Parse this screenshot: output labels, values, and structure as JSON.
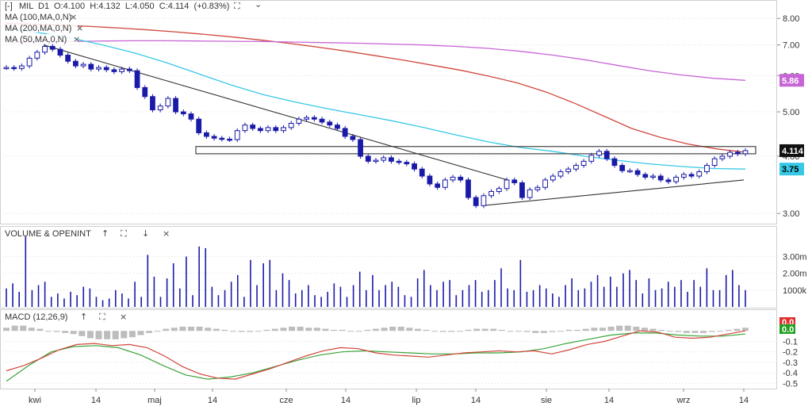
{
  "header": {
    "collapse": "[-]",
    "symbol": "MIL",
    "interval": "D1",
    "ohlc": "O:4.100  H:4.132  L:4.050  C:4.114  (+0.83%)"
  },
  "indicators": [
    {
      "label": "MA (100,MA,0,N)",
      "color": "#d0473b"
    },
    {
      "label": "MA (200,MA,0,N)",
      "color": "#c865d6"
    },
    {
      "label": "MA (50,MA,0,N)",
      "color": "#37c8e6"
    }
  ],
  "panels": {
    "volume_label": "VOLUME & OPENINT",
    "macd_label": "MACD (12,26,9)"
  },
  "icons": {
    "expand": "⛶",
    "down": "⌄",
    "close": "×",
    "up": "↑",
    "down_arrow": "↓"
  },
  "colors": {
    "candle": "#1a1aa8",
    "price_line": "#555555",
    "ma100": "#d0473b",
    "ma200": "#c865d6",
    "ma50": "#37c8e6",
    "macd": "#d0473b",
    "signal": "#3aa33a",
    "hist": "#bdbdbd",
    "volume": "#1a1aa8"
  },
  "chart_data": {
    "type": "candlestick",
    "x_labels": [
      "kwi",
      "14",
      "maj",
      "14",
      "cze",
      "14",
      "lip",
      "14",
      "sie",
      "14",
      "wrz",
      "14"
    ],
    "price_axis": {
      "ticks": [
        "8.00",
        "7.00",
        "6.00",
        "5.00",
        "4.00",
        "3.00"
      ],
      "scale": "log"
    },
    "price_badges": [
      {
        "value": "5.86",
        "bg": "#c865d6",
        "fg": "#ffffff"
      },
      {
        "value": "4.114",
        "bg": "#111111",
        "fg": "#ffffff"
      },
      {
        "value": "3.75",
        "bg": "#37c8e6",
        "fg": "#000000"
      }
    ],
    "volume_axis": {
      "ticks": [
        "3.00m",
        "2.00m",
        "1000k"
      ]
    },
    "macd_axis": {
      "ticks": [
        "-0.1",
        "-0.2",
        "-0.3",
        "-0.4",
        "-0.5"
      ]
    },
    "macd_badges": [
      {
        "value": "0.0",
        "bg": "#e03030",
        "fg": "#ffffff"
      },
      {
        "value": "0.0",
        "bg": "#1fa01f",
        "fg": "#ffffff"
      }
    ],
    "closes": [
      6.25,
      6.22,
      6.3,
      6.55,
      6.75,
      6.95,
      6.85,
      6.65,
      6.45,
      6.3,
      6.35,
      6.2,
      6.25,
      6.18,
      6.12,
      6.2,
      6.15,
      5.65,
      5.4,
      5.05,
      5.15,
      5.35,
      5.0,
      4.95,
      4.82,
      4.5,
      4.42,
      4.38,
      4.36,
      4.35,
      4.55,
      4.68,
      4.6,
      4.55,
      4.62,
      4.55,
      4.62,
      4.72,
      4.82,
      4.86,
      4.82,
      4.75,
      4.68,
      4.6,
      4.42,
      4.35,
      4.0,
      3.9,
      3.92,
      3.97,
      3.9,
      3.88,
      3.85,
      3.75,
      3.62,
      3.48,
      3.42,
      3.55,
      3.6,
      3.55,
      3.25,
      3.12,
      3.28,
      3.35,
      3.4,
      3.55,
      3.5,
      3.25,
      3.38,
      3.42,
      3.55,
      3.62,
      3.7,
      3.75,
      3.82,
      3.9,
      4.02,
      4.1,
      3.95,
      3.82,
      3.72,
      3.72,
      3.65,
      3.6,
      3.62,
      3.55,
      3.52,
      3.6,
      3.65,
      3.62,
      3.7,
      3.82,
      3.95,
      4.0,
      4.08,
      4.05,
      4.114
    ],
    "series": [
      {
        "name": "MA (100,MA,0,N)",
        "values": [
          7.8,
          7.77,
          7.73,
          7.68,
          7.62,
          7.55,
          7.47,
          7.38,
          7.28,
          7.17,
          7.05,
          6.92,
          6.78,
          6.63,
          6.48,
          6.32,
          6.16,
          5.98,
          5.78,
          5.52,
          5.22,
          4.9,
          4.6,
          4.4,
          4.25,
          4.15,
          4.08
        ]
      },
      {
        "name": "MA (200,MA,0,N)",
        "values": [
          7.08,
          7.1,
          7.12,
          7.14,
          7.15,
          7.15,
          7.14,
          7.13,
          7.12,
          7.1,
          7.08,
          7.06,
          7.03,
          7.0,
          6.95,
          6.88,
          6.78,
          6.65,
          6.5,
          6.32,
          6.15,
          6.02,
          5.92,
          5.86
        ]
      },
      {
        "name": "MA (50,MA,0,N)",
        "values": [
          7.6,
          7.45,
          7.25,
          7.0,
          6.72,
          6.4,
          6.05,
          5.72,
          5.45,
          5.25,
          5.08,
          4.93,
          4.78,
          4.62,
          4.45,
          4.3,
          4.18,
          4.1,
          4.0,
          3.92,
          3.85,
          3.8,
          3.76,
          3.75
        ]
      }
    ],
    "volume": [
      1.1,
      1.4,
      0.9,
      4.2,
      1.0,
      1.3,
      1.5,
      0.6,
      0.8,
      0.5,
      0.9,
      0.7,
      1.2,
      1.1,
      0.6,
      0.4,
      0.5,
      1.0,
      0.8,
      0.5,
      1.5,
      0.6,
      3.1,
      1.8,
      0.6,
      1.7,
      2.6,
      1.1,
      3.0,
      0.7,
      3.6,
      3.5,
      1.2,
      0.7,
      1.0,
      1.5,
      1.9,
      0.6,
      2.8,
      1.3,
      2.6,
      2.8,
      1.0,
      2.0,
      1.6,
      0.8,
      1.0,
      1.3,
      0.7,
      0.6,
      0.9,
      1.4,
      1.2,
      0.6,
      1.3,
      2.1,
      1.0,
      1.9,
      1.0,
      1.3,
      1.5,
      1.2,
      0.7,
      0.6,
      1.7,
      2.2,
      1.3,
      1.0,
      1.5,
      1.6,
      0.7,
      1.0,
      1.3,
      1.6,
      0.9,
      1.0,
      1.6,
      2.3,
      1.1,
      1.0,
      2.8,
      0.9,
      1.0,
      1.3,
      1.1,
      0.8,
      0.6,
      1.3,
      1.7,
      1.0,
      1.1,
      1.5,
      1.9,
      1.2,
      1.8,
      1.2,
      2.0,
      2.2,
      1.6,
      0.8,
      1.7,
      1.0,
      1.1,
      1.5,
      1.2,
      1.6,
      0.9,
      1.6,
      1.2,
      2.3,
      1.0,
      1.0,
      1.9,
      2.2,
      1.3,
      1.0
    ],
    "macd": [
      -0.38,
      -0.33,
      -0.26,
      -0.18,
      -0.13,
      -0.12,
      -0.14,
      -0.13,
      -0.16,
      -0.24,
      -0.34,
      -0.41,
      -0.45,
      -0.46,
      -0.41,
      -0.36,
      -0.3,
      -0.24,
      -0.19,
      -0.16,
      -0.17,
      -0.21,
      -0.23,
      -0.24,
      -0.25,
      -0.23,
      -0.21,
      -0.2,
      -0.19,
      -0.2,
      -0.19,
      -0.22,
      -0.18,
      -0.13,
      -0.1,
      -0.05,
      0.0,
      -0.01,
      -0.06,
      -0.07,
      -0.06,
      -0.03,
      0.0
    ],
    "signal": [
      -0.48,
      -0.33,
      -0.2,
      -0.15,
      -0.14,
      -0.16,
      -0.23,
      -0.33,
      -0.42,
      -0.46,
      -0.44,
      -0.4,
      -0.34,
      -0.28,
      -0.23,
      -0.2,
      -0.19,
      -0.2,
      -0.21,
      -0.22,
      -0.22,
      -0.21,
      -0.21,
      -0.2,
      -0.17,
      -0.12,
      -0.08,
      -0.04,
      -0.02,
      -0.02,
      -0.04,
      -0.05,
      -0.05,
      -0.03
    ],
    "histogram": [
      0.03,
      0.05,
      0.05,
      0.03,
      0.02,
      0.0,
      -0.01,
      -0.02,
      -0.03,
      -0.05,
      -0.07,
      -0.08,
      -0.08,
      -0.08,
      -0.07,
      -0.06,
      -0.04,
      -0.02,
      0.0,
      0.02,
      0.03,
      0.04,
      0.04,
      0.04,
      0.03,
      0.02,
      0.01,
      0.0,
      -0.01,
      -0.01,
      0.0,
      0.01,
      0.02,
      0.03,
      0.04,
      0.04,
      0.03,
      0.03,
      0.02,
      0.01,
      0.01,
      0.0,
      0.0,
      0.01,
      0.02,
      0.03,
      0.04,
      0.04,
      0.03,
      0.02,
      0.01,
      0.0,
      -0.01,
      -0.01,
      0.0,
      0.01,
      0.02,
      0.02,
      0.02,
      0.01,
      0.0,
      0.0,
      -0.01,
      -0.02,
      -0.02,
      -0.01,
      0.0,
      0.01,
      0.01,
      0.02,
      0.03,
      0.03,
      0.04,
      0.05,
      0.05,
      0.04,
      0.03,
      0.02,
      0.01,
      0.0,
      -0.01,
      -0.02,
      -0.02,
      -0.02,
      -0.01,
      0.0,
      0.01,
      0.02,
      0.03
    ]
  }
}
